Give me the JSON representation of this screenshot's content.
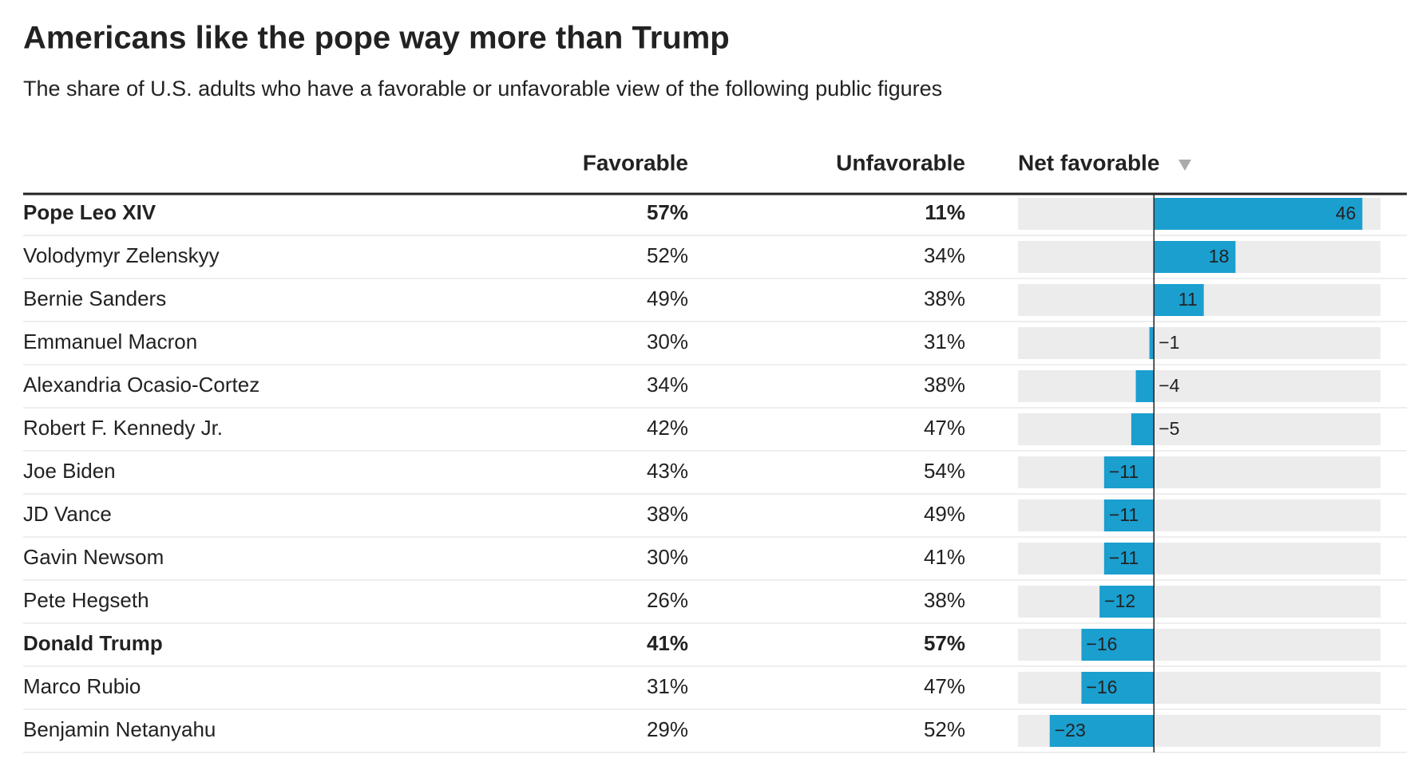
{
  "chart_data": {
    "type": "bar",
    "title": "Americans like the pope way more than Trump",
    "subtitle": "The share of U.S. adults who have a favorable or unfavorable view of the following public figures",
    "categories": [
      "Pope Leo XIV",
      "Volodymyr Zelenskyy",
      "Bernie Sanders",
      "Emmanuel Macron",
      "Alexandria Ocasio-Cortez",
      "Robert F. Kennedy Jr.",
      "Joe Biden",
      "JD Vance",
      "Gavin Newsom",
      "Pete Hegseth",
      "Donald Trump",
      "Marco Rubio",
      "Benjamin Netanyahu"
    ],
    "bold": [
      true,
      false,
      false,
      false,
      false,
      false,
      false,
      false,
      false,
      false,
      true,
      false,
      false
    ],
    "series": [
      {
        "name": "Favorable",
        "values": [
          57,
          52,
          49,
          30,
          34,
          42,
          43,
          38,
          30,
          26,
          41,
          31,
          29
        ],
        "value_labels": [
          "57%",
          "52%",
          "49%",
          "30%",
          "34%",
          "42%",
          "43%",
          "38%",
          "30%",
          "26%",
          "41%",
          "31%",
          "29%"
        ]
      },
      {
        "name": "Unfavorable",
        "values": [
          11,
          34,
          38,
          31,
          38,
          47,
          54,
          49,
          41,
          38,
          57,
          47,
          52
        ],
        "value_labels": [
          "11%",
          "34%",
          "38%",
          "31%",
          "38%",
          "47%",
          "54%",
          "49%",
          "41%",
          "38%",
          "57%",
          "47%",
          "52%"
        ]
      },
      {
        "name": "Net favorable",
        "color": "#1a9fcf",
        "values": [
          46,
          18,
          11,
          -1,
          -4,
          -5,
          -11,
          -11,
          -11,
          -12,
          -16,
          -16,
          -23
        ],
        "value_labels": [
          "46",
          "18",
          "11",
          "−1",
          "−4",
          "−5",
          "−11",
          "−11",
          "−11",
          "−12",
          "−16",
          "−16",
          "−23"
        ]
      }
    ],
    "xlim": [
      -30,
      50
    ]
  }
}
